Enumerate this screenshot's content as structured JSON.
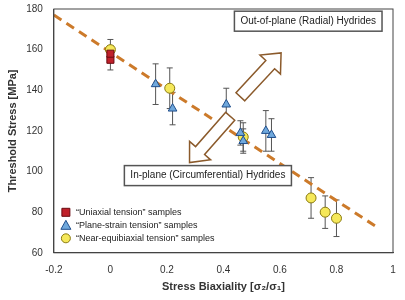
{
  "chart_data": {
    "type": "scatter",
    "x_label": "Stress Biaxiality [σ₂/σ₁]",
    "y_label": "Threshold Stress [MPa]",
    "xlim": [
      -0.2,
      1
    ],
    "xticks": [
      -0.2,
      0,
      0.2,
      0.4,
      0.6,
      0.8,
      1
    ],
    "ylim": [
      60,
      180
    ],
    "yticks": [
      60,
      80,
      100,
      120,
      140,
      160,
      180
    ],
    "grid": false,
    "legend": "lower left",
    "series": [
      {
        "name": "“Uniaxial tension” samples",
        "color": "#c0202a",
        "marker": "square",
        "x": [
          0,
          0
        ],
        "values": [
          155,
          158
        ],
        "errors": [
          5,
          4
        ]
      },
      {
        "name": "“Plane-strain tension” samples",
        "color": "#6fa8dc",
        "marker": "triangle",
        "x": [
          0.16,
          0.22,
          0.41,
          0.46,
          0.47,
          0.55,
          0.57
        ],
        "values": [
          143,
          131,
          133,
          119,
          115,
          120,
          118
        ],
        "errors": [
          10,
          8,
          8,
          6,
          6,
          10,
          8
        ]
      },
      {
        "name": "“Near-equibiaxial tension” samples",
        "color": "#f5e85a",
        "marker": "circle",
        "x": [
          0,
          0.21,
          0.47,
          0.71,
          0.76,
          0.8
        ],
        "values": [
          160,
          141,
          117,
          87,
          80,
          77
        ],
        "errors": [
          5,
          10,
          7,
          10,
          8,
          9
        ]
      }
    ],
    "trend_line": {
      "x": [
        -0.2,
        0.95
      ],
      "values": [
        177,
        72
      ],
      "color": "#cc7a2a",
      "line_style": "dashed"
    },
    "annotations": [
      {
        "text": "Out-of-plane (Radial) Hydrides",
        "x": 0.7,
        "y": 174
      },
      {
        "text": "In-plane (Circumferential) Hydrides",
        "x": 0.345,
        "y": 98
      }
    ]
  }
}
